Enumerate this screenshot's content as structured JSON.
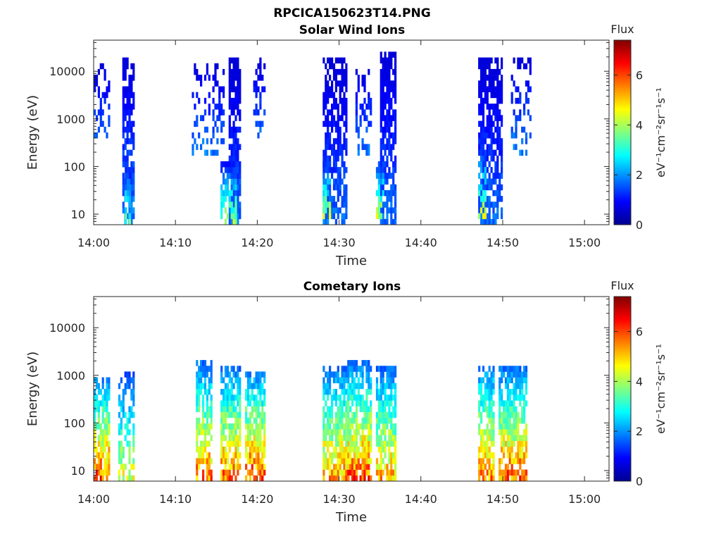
{
  "figure_title": "RPCICA150623T14.PNG",
  "colors": {
    "axis": "#262626",
    "colormap": [
      "#00008f",
      "#0000ff",
      "#0080ff",
      "#00ffff",
      "#80ff80",
      "#ffff00",
      "#ff8000",
      "#ff0000",
      "#800000"
    ]
  },
  "chart_data": [
    {
      "type": "heatmap",
      "title": "Solar Wind Ions",
      "xlabel": "Time",
      "ylabel": "Energy (eV)",
      "xlim": [
        "14:00",
        "15:03"
      ],
      "yscale": "log",
      "ylim": [
        6,
        45000
      ],
      "xticks": [
        "14:00",
        "14:10",
        "14:20",
        "14:30",
        "14:40",
        "14:50",
        "15:00"
      ],
      "yticks": [
        "10",
        "100",
        "1000",
        "10000"
      ],
      "colorbar": {
        "label_top": "Flux",
        "units": "eV⁻¹cm⁻²sr⁻¹s⁻¹",
        "ticks": [
          "0",
          "2",
          "4",
          "6"
        ],
        "range": [
          0,
          7.4
        ]
      },
      "clusters": [
        {
          "t0": "14:00",
          "t1": "14:02",
          "emin": 300,
          "emax": 12000,
          "peak": 2.0,
          "density": 0.35
        },
        {
          "t0": "14:03.5",
          "t1": "14:05",
          "emin": 6,
          "emax": 15000,
          "peak": 2.2,
          "density": 0.75
        },
        {
          "t0": "14:03.8",
          "t1": "14:04.5",
          "emin": 6,
          "emax": 80,
          "peak": 4.0,
          "density": 0.6
        },
        {
          "t0": "14:12",
          "t1": "14:16",
          "emin": 200,
          "emax": 12000,
          "peak": 2.1,
          "density": 0.3
        },
        {
          "t0": "14:16.5",
          "t1": "14:18",
          "emin": 6,
          "emax": 15000,
          "peak": 2.0,
          "density": 0.8
        },
        {
          "t0": "14:15.5",
          "t1": "14:17.5",
          "emin": 6,
          "emax": 100,
          "peak": 4.5,
          "density": 0.65
        },
        {
          "t0": "14:19.5",
          "t1": "14:21",
          "emin": 400,
          "emax": 15000,
          "peak": 2.0,
          "density": 0.4
        },
        {
          "t0": "14:28",
          "t1": "14:31",
          "emin": 6,
          "emax": 15000,
          "peak": 2.0,
          "density": 0.7
        },
        {
          "t0": "14:28",
          "t1": "14:29",
          "emin": 10,
          "emax": 100,
          "peak": 4.5,
          "density": 0.6
        },
        {
          "t0": "14:32",
          "t1": "14:34",
          "emin": 200,
          "emax": 10000,
          "peak": 2.1,
          "density": 0.4
        },
        {
          "t0": "14:35",
          "t1": "14:37",
          "emin": 6,
          "emax": 20000,
          "peak": 2.0,
          "density": 0.8
        },
        {
          "t0": "14:34.5",
          "t1": "14:35.5",
          "emin": 10,
          "emax": 120,
          "peak": 4.5,
          "density": 0.6
        },
        {
          "t0": "14:47",
          "t1": "14:50",
          "emin": 6,
          "emax": 15000,
          "peak": 2.0,
          "density": 0.7
        },
        {
          "t0": "14:47",
          "t1": "14:48",
          "emin": 10,
          "emax": 200,
          "peak": 4.6,
          "density": 0.6
        },
        {
          "t0": "14:51",
          "t1": "14:53.5",
          "emin": 200,
          "emax": 15000,
          "peak": 2.2,
          "density": 0.3
        }
      ]
    },
    {
      "type": "heatmap",
      "title": "Cometary Ions",
      "xlabel": "Time",
      "ylabel": "Energy (eV)",
      "xlim": [
        "14:00",
        "15:03"
      ],
      "yscale": "log",
      "ylim": [
        6,
        45000
      ],
      "xticks": [
        "14:00",
        "14:10",
        "14:20",
        "14:30",
        "14:40",
        "14:50",
        "15:00"
      ],
      "yticks": [
        "10",
        "100",
        "1000",
        "10000"
      ],
      "colorbar": {
        "label_top": "Flux",
        "units": "eV⁻¹cm⁻²sr⁻¹s⁻¹",
        "ticks": [
          "0",
          "2",
          "4",
          "6"
        ],
        "range": [
          0,
          7.4
        ]
      },
      "clusters": [
        {
          "t0": "14:00",
          "t1": "14:02",
          "emin": 6,
          "emax": 900,
          "peak": 6.8,
          "density": 0.75
        },
        {
          "t0": "14:03",
          "t1": "14:05",
          "emin": 6,
          "emax": 1000,
          "peak": 5.2,
          "density": 0.6
        },
        {
          "t0": "14:12.5",
          "t1": "14:14.5",
          "emin": 6,
          "emax": 1600,
          "peak": 6.6,
          "density": 0.7
        },
        {
          "t0": "14:15.5",
          "t1": "14:18",
          "emin": 6,
          "emax": 1200,
          "peak": 6.7,
          "density": 0.75
        },
        {
          "t0": "14:18.5",
          "t1": "14:21",
          "emin": 6,
          "emax": 1000,
          "peak": 7.0,
          "density": 0.8
        },
        {
          "t0": "14:28",
          "t1": "14:31",
          "emin": 6,
          "emax": 1500,
          "peak": 6.2,
          "density": 0.75
        },
        {
          "t0": "14:31",
          "t1": "14:34",
          "emin": 6,
          "emax": 1600,
          "peak": 6.8,
          "density": 0.8
        },
        {
          "t0": "14:34.5",
          "t1": "14:37",
          "emin": 6,
          "emax": 1500,
          "peak": 6.0,
          "density": 0.75
        },
        {
          "t0": "14:47",
          "t1": "14:49",
          "emin": 6,
          "emax": 1500,
          "peak": 6.5,
          "density": 0.7
        },
        {
          "t0": "14:49.5",
          "t1": "14:53",
          "emin": 6,
          "emax": 1200,
          "peak": 6.8,
          "density": 0.75
        }
      ]
    }
  ]
}
